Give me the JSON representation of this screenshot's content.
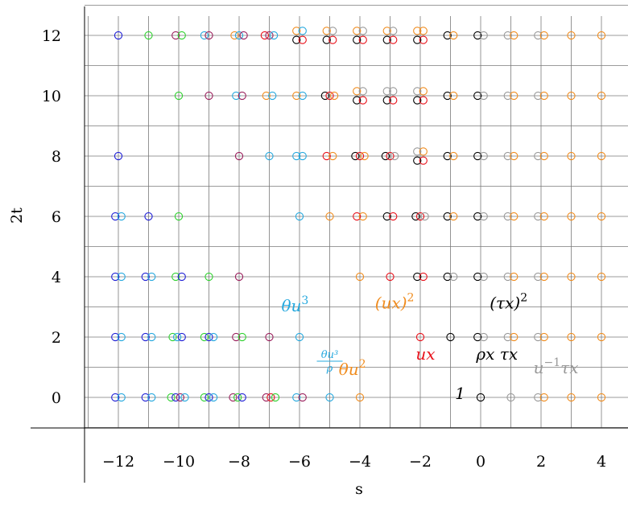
{
  "chart_data": {
    "type": "scatter",
    "xlabel": "s",
    "ylabel": "2t",
    "xlim": [
      -13,
      5
    ],
    "ylim": [
      -1,
      13
    ],
    "grid": true,
    "x_ticks": [
      {
        "v": -12,
        "label": "−12"
      },
      {
        "v": -10,
        "label": "−10"
      },
      {
        "v": -8,
        "label": "−8"
      },
      {
        "v": -6,
        "label": "−6"
      },
      {
        "v": -4,
        "label": "−4"
      },
      {
        "v": -2,
        "label": "−2"
      },
      {
        "v": 0,
        "label": "0"
      },
      {
        "v": 2,
        "label": "2"
      },
      {
        "v": 4,
        "label": "4"
      }
    ],
    "y_ticks": [
      {
        "v": 0,
        "label": "0"
      },
      {
        "v": 2,
        "label": "2"
      },
      {
        "v": 4,
        "label": "4"
      },
      {
        "v": 6,
        "label": "6"
      },
      {
        "v": 8,
        "label": "8"
      },
      {
        "v": 10,
        "label": "10"
      },
      {
        "v": 12,
        "label": "12"
      }
    ],
    "colors": {
      "blue": "#1f1fd6",
      "green": "#2fd12f",
      "purple": "#9a1f5c",
      "red": "#e8101a",
      "cyan": "#25a8de",
      "orange": "#f08c1e",
      "black": "#000000",
      "gray": "#999999"
    },
    "points": [
      {
        "x": -12.1,
        "y": 0,
        "c": "blue"
      },
      {
        "x": -11.9,
        "y": 0,
        "c": "cyan"
      },
      {
        "x": -11.1,
        "y": 0,
        "c": "blue"
      },
      {
        "x": -10.9,
        "y": 0,
        "c": "cyan"
      },
      {
        "x": -10.25,
        "y": 0,
        "c": "green"
      },
      {
        "x": -10.1,
        "y": 0,
        "c": "blue"
      },
      {
        "x": -9.95,
        "y": 0,
        "c": "purple"
      },
      {
        "x": -9.8,
        "y": 0,
        "c": "cyan"
      },
      {
        "x": -9.15,
        "y": 0,
        "c": "green"
      },
      {
        "x": -9.0,
        "y": 0,
        "c": "blue"
      },
      {
        "x": -8.85,
        "y": 0,
        "c": "cyan"
      },
      {
        "x": -8.2,
        "y": 0,
        "c": "purple"
      },
      {
        "x": -8.05,
        "y": 0,
        "c": "green"
      },
      {
        "x": -7.9,
        "y": 0,
        "c": "blue"
      },
      {
        "x": -7.1,
        "y": 0,
        "c": "purple"
      },
      {
        "x": -6.95,
        "y": 0,
        "c": "red"
      },
      {
        "x": -6.8,
        "y": 0,
        "c": "green"
      },
      {
        "x": -6.1,
        "y": 0,
        "c": "cyan"
      },
      {
        "x": -5.9,
        "y": 0,
        "c": "purple"
      },
      {
        "x": -5,
        "y": 0,
        "c": "cyan"
      },
      {
        "x": -4,
        "y": 0,
        "c": "orange"
      },
      {
        "x": 0,
        "y": 0,
        "c": "black"
      },
      {
        "x": 1,
        "y": 0,
        "c": "gray"
      },
      {
        "x": 1.9,
        "y": 0,
        "c": "gray"
      },
      {
        "x": 2.1,
        "y": 0,
        "c": "orange"
      },
      {
        "x": 3,
        "y": 0,
        "c": "orange"
      },
      {
        "x": 4,
        "y": 0,
        "c": "orange"
      },
      {
        "x": -12.1,
        "y": 2,
        "c": "blue"
      },
      {
        "x": -11.9,
        "y": 2,
        "c": "cyan"
      },
      {
        "x": -11.1,
        "y": 2,
        "c": "blue"
      },
      {
        "x": -10.9,
        "y": 2,
        "c": "cyan"
      },
      {
        "x": -10.2,
        "y": 2,
        "c": "green"
      },
      {
        "x": -10.05,
        "y": 2,
        "c": "cyan"
      },
      {
        "x": -9.9,
        "y": 2,
        "c": "blue"
      },
      {
        "x": -9.15,
        "y": 2,
        "c": "green"
      },
      {
        "x": -9.0,
        "y": 2,
        "c": "blue"
      },
      {
        "x": -8.85,
        "y": 2,
        "c": "cyan"
      },
      {
        "x": -8.1,
        "y": 2,
        "c": "purple"
      },
      {
        "x": -7.9,
        "y": 2,
        "c": "green"
      },
      {
        "x": -7,
        "y": 2,
        "c": "purple"
      },
      {
        "x": -6,
        "y": 2,
        "c": "cyan"
      },
      {
        "x": -2,
        "y": 2,
        "c": "red"
      },
      {
        "x": -1,
        "y": 2,
        "c": "black"
      },
      {
        "x": -0.1,
        "y": 2,
        "c": "black"
      },
      {
        "x": 0.1,
        "y": 2,
        "c": "gray"
      },
      {
        "x": 0.9,
        "y": 2,
        "c": "gray"
      },
      {
        "x": 1.1,
        "y": 2,
        "c": "orange"
      },
      {
        "x": 1.9,
        "y": 2,
        "c": "gray"
      },
      {
        "x": 2.1,
        "y": 2,
        "c": "orange"
      },
      {
        "x": 3,
        "y": 2,
        "c": "orange"
      },
      {
        "x": 4,
        "y": 2,
        "c": "orange"
      },
      {
        "x": -12.1,
        "y": 4,
        "c": "blue"
      },
      {
        "x": -11.9,
        "y": 4,
        "c": "cyan"
      },
      {
        "x": -11.1,
        "y": 4,
        "c": "blue"
      },
      {
        "x": -10.9,
        "y": 4,
        "c": "cyan"
      },
      {
        "x": -10.1,
        "y": 4,
        "c": "green"
      },
      {
        "x": -9.9,
        "y": 4,
        "c": "blue"
      },
      {
        "x": -9,
        "y": 4,
        "c": "green"
      },
      {
        "x": -8,
        "y": 4,
        "c": "purple"
      },
      {
        "x": -4,
        "y": 4,
        "c": "orange"
      },
      {
        "x": -3,
        "y": 4,
        "c": "red"
      },
      {
        "x": -2.1,
        "y": 4,
        "c": "black"
      },
      {
        "x": -1.9,
        "y": 4,
        "c": "red"
      },
      {
        "x": -1.1,
        "y": 4,
        "c": "black"
      },
      {
        "x": -0.9,
        "y": 4,
        "c": "gray"
      },
      {
        "x": -0.1,
        "y": 4,
        "c": "black"
      },
      {
        "x": 0.1,
        "y": 4,
        "c": "gray"
      },
      {
        "x": 0.9,
        "y": 4,
        "c": "gray"
      },
      {
        "x": 1.1,
        "y": 4,
        "c": "orange"
      },
      {
        "x": 1.9,
        "y": 4,
        "c": "gray"
      },
      {
        "x": 2.1,
        "y": 4,
        "c": "orange"
      },
      {
        "x": 3,
        "y": 4,
        "c": "orange"
      },
      {
        "x": 4,
        "y": 4,
        "c": "orange"
      },
      {
        "x": -12.1,
        "y": 6,
        "c": "blue"
      },
      {
        "x": -11.9,
        "y": 6,
        "c": "cyan"
      },
      {
        "x": -11,
        "y": 6,
        "c": "blue"
      },
      {
        "x": -10,
        "y": 6,
        "c": "green"
      },
      {
        "x": -6,
        "y": 6,
        "c": "cyan"
      },
      {
        "x": -5,
        "y": 6,
        "c": "orange"
      },
      {
        "x": -4.1,
        "y": 6,
        "c": "red"
      },
      {
        "x": -3.9,
        "y": 6,
        "c": "orange"
      },
      {
        "x": -3.1,
        "y": 6,
        "c": "black"
      },
      {
        "x": -2.9,
        "y": 6,
        "c": "red"
      },
      {
        "x": -2.15,
        "y": 6,
        "c": "black"
      },
      {
        "x": -2.0,
        "y": 6,
        "c": "red"
      },
      {
        "x": -1.85,
        "y": 6,
        "c": "gray"
      },
      {
        "x": -1.1,
        "y": 6,
        "c": "black"
      },
      {
        "x": -0.9,
        "y": 6,
        "c": "orange"
      },
      {
        "x": -0.1,
        "y": 6,
        "c": "black"
      },
      {
        "x": 0.1,
        "y": 6,
        "c": "gray"
      },
      {
        "x": 0.9,
        "y": 6,
        "c": "gray"
      },
      {
        "x": 1.1,
        "y": 6,
        "c": "orange"
      },
      {
        "x": 1.9,
        "y": 6,
        "c": "gray"
      },
      {
        "x": 2.1,
        "y": 6,
        "c": "orange"
      },
      {
        "x": 3,
        "y": 6,
        "c": "orange"
      },
      {
        "x": 4,
        "y": 6,
        "c": "orange"
      },
      {
        "x": -12,
        "y": 8,
        "c": "blue"
      },
      {
        "x": -8,
        "y": 8,
        "c": "purple"
      },
      {
        "x": -7,
        "y": 8,
        "c": "cyan"
      },
      {
        "x": -6.1,
        "y": 8,
        "c": "cyan"
      },
      {
        "x": -5.9,
        "y": 8,
        "c": "cyan"
      },
      {
        "x": -5.1,
        "y": 8,
        "c": "red"
      },
      {
        "x": -4.9,
        "y": 8,
        "c": "orange"
      },
      {
        "x": -4.15,
        "y": 8,
        "c": "black"
      },
      {
        "x": -4.0,
        "y": 8,
        "c": "red"
      },
      {
        "x": -3.85,
        "y": 8,
        "c": "orange"
      },
      {
        "x": -3.15,
        "y": 8,
        "c": "black"
      },
      {
        "x": -3.0,
        "y": 8,
        "c": "red"
      },
      {
        "x": -2.85,
        "y": 8,
        "c": "gray"
      },
      {
        "x": -2.1,
        "y": 8.15,
        "c": "gray"
      },
      {
        "x": -1.9,
        "y": 8.15,
        "c": "orange"
      },
      {
        "x": -2.1,
        "y": 7.85,
        "c": "black"
      },
      {
        "x": -1.9,
        "y": 7.85,
        "c": "red"
      },
      {
        "x": -1.1,
        "y": 8,
        "c": "black"
      },
      {
        "x": -0.9,
        "y": 8,
        "c": "orange"
      },
      {
        "x": -0.1,
        "y": 8,
        "c": "black"
      },
      {
        "x": 0.1,
        "y": 8,
        "c": "gray"
      },
      {
        "x": 0.9,
        "y": 8,
        "c": "gray"
      },
      {
        "x": 1.1,
        "y": 8,
        "c": "orange"
      },
      {
        "x": 1.9,
        "y": 8,
        "c": "gray"
      },
      {
        "x": 2.1,
        "y": 8,
        "c": "orange"
      },
      {
        "x": 3,
        "y": 8,
        "c": "orange"
      },
      {
        "x": 4,
        "y": 8,
        "c": "orange"
      },
      {
        "x": -10,
        "y": 10,
        "c": "green"
      },
      {
        "x": -9,
        "y": 10,
        "c": "purple"
      },
      {
        "x": -8.1,
        "y": 10,
        "c": "cyan"
      },
      {
        "x": -7.9,
        "y": 10,
        "c": "purple"
      },
      {
        "x": -7.1,
        "y": 10,
        "c": "orange"
      },
      {
        "x": -6.9,
        "y": 10,
        "c": "cyan"
      },
      {
        "x": -6.1,
        "y": 10,
        "c": "orange"
      },
      {
        "x": -5.9,
        "y": 10,
        "c": "cyan"
      },
      {
        "x": -5.15,
        "y": 10,
        "c": "black"
      },
      {
        "x": -5.0,
        "y": 10,
        "c": "red"
      },
      {
        "x": -4.85,
        "y": 10,
        "c": "orange"
      },
      {
        "x": -4.1,
        "y": 10.15,
        "c": "orange"
      },
      {
        "x": -3.9,
        "y": 10.15,
        "c": "gray"
      },
      {
        "x": -4.1,
        "y": 9.85,
        "c": "black"
      },
      {
        "x": -3.9,
        "y": 9.85,
        "c": "red"
      },
      {
        "x": -3.1,
        "y": 10.15,
        "c": "gray"
      },
      {
        "x": -2.9,
        "y": 10.15,
        "c": "gray"
      },
      {
        "x": -3.1,
        "y": 9.85,
        "c": "black"
      },
      {
        "x": -2.9,
        "y": 9.85,
        "c": "red"
      },
      {
        "x": -2.1,
        "y": 10.15,
        "c": "gray"
      },
      {
        "x": -1.9,
        "y": 10.15,
        "c": "orange"
      },
      {
        "x": -2.1,
        "y": 9.85,
        "c": "black"
      },
      {
        "x": -1.9,
        "y": 9.85,
        "c": "red"
      },
      {
        "x": -1.1,
        "y": 10,
        "c": "black"
      },
      {
        "x": -0.9,
        "y": 10,
        "c": "orange"
      },
      {
        "x": -0.1,
        "y": 10,
        "c": "black"
      },
      {
        "x": 0.1,
        "y": 10,
        "c": "gray"
      },
      {
        "x": 0.9,
        "y": 10,
        "c": "gray"
      },
      {
        "x": 1.1,
        "y": 10,
        "c": "orange"
      },
      {
        "x": 1.9,
        "y": 10,
        "c": "gray"
      },
      {
        "x": 2.1,
        "y": 10,
        "c": "orange"
      },
      {
        "x": 3,
        "y": 10,
        "c": "orange"
      },
      {
        "x": 4,
        "y": 10,
        "c": "orange"
      },
      {
        "x": -12,
        "y": 12,
        "c": "blue"
      },
      {
        "x": -11,
        "y": 12,
        "c": "green"
      },
      {
        "x": -10.1,
        "y": 12,
        "c": "purple"
      },
      {
        "x": -9.9,
        "y": 12,
        "c": "green"
      },
      {
        "x": -9.15,
        "y": 12,
        "c": "cyan"
      },
      {
        "x": -9.0,
        "y": 12,
        "c": "purple"
      },
      {
        "x": -8.15,
        "y": 12,
        "c": "orange"
      },
      {
        "x": -8.0,
        "y": 12,
        "c": "cyan"
      },
      {
        "x": -7.85,
        "y": 12,
        "c": "purple"
      },
      {
        "x": -7.15,
        "y": 12,
        "c": "red"
      },
      {
        "x": -7.0,
        "y": 12,
        "c": "purple"
      },
      {
        "x": -6.85,
        "y": 12,
        "c": "cyan"
      },
      {
        "x": -6.1,
        "y": 12.15,
        "c": "orange"
      },
      {
        "x": -5.9,
        "y": 12.15,
        "c": "cyan"
      },
      {
        "x": -6.1,
        "y": 11.85,
        "c": "black"
      },
      {
        "x": -5.9,
        "y": 11.85,
        "c": "red"
      },
      {
        "x": -5.1,
        "y": 12.15,
        "c": "orange"
      },
      {
        "x": -4.9,
        "y": 12.15,
        "c": "gray"
      },
      {
        "x": -5.1,
        "y": 11.85,
        "c": "black"
      },
      {
        "x": -4.9,
        "y": 11.85,
        "c": "red"
      },
      {
        "x": -4.1,
        "y": 12.15,
        "c": "orange"
      },
      {
        "x": -3.9,
        "y": 12.15,
        "c": "gray"
      },
      {
        "x": -4.1,
        "y": 11.85,
        "c": "black"
      },
      {
        "x": -3.9,
        "y": 11.85,
        "c": "red"
      },
      {
        "x": -3.1,
        "y": 12.15,
        "c": "orange"
      },
      {
        "x": -2.9,
        "y": 12.15,
        "c": "gray"
      },
      {
        "x": -3.1,
        "y": 11.85,
        "c": "black"
      },
      {
        "x": -2.9,
        "y": 11.85,
        "c": "red"
      },
      {
        "x": -2.1,
        "y": 12.15,
        "c": "orange"
      },
      {
        "x": -1.9,
        "y": 12.15,
        "c": "orange"
      },
      {
        "x": -2.1,
        "y": 11.85,
        "c": "black"
      },
      {
        "x": -1.9,
        "y": 11.85,
        "c": "red"
      },
      {
        "x": -1.1,
        "y": 12,
        "c": "black"
      },
      {
        "x": -0.9,
        "y": 12,
        "c": "orange"
      },
      {
        "x": -0.1,
        "y": 12,
        "c": "black"
      },
      {
        "x": 0.1,
        "y": 12,
        "c": "gray"
      },
      {
        "x": 0.9,
        "y": 12,
        "c": "gray"
      },
      {
        "x": 1.1,
        "y": 12,
        "c": "orange"
      },
      {
        "x": 1.9,
        "y": 12,
        "c": "gray"
      },
      {
        "x": 2.1,
        "y": 12,
        "c": "orange"
      },
      {
        "x": 3,
        "y": 12,
        "c": "orange"
      },
      {
        "x": 4,
        "y": 12,
        "c": "orange"
      }
    ],
    "annotations": [
      {
        "x": -6.6,
        "y": 2.85,
        "c": "cyan",
        "base": "θu",
        "sup": "3"
      },
      {
        "x": -3.5,
        "y": 2.95,
        "c": "orange",
        "base": "(ux)",
        "sup": "2"
      },
      {
        "x": 0.3,
        "y": 2.95,
        "c": "black",
        "base": "(τx)",
        "sup": "2"
      },
      {
        "x": -5.0,
        "y": 1.2,
        "c": "cyan",
        "frac_num": "θu³",
        "frac_den": "ρ"
      },
      {
        "x": -4.7,
        "y": 0.75,
        "c": "orange",
        "base": "θu",
        "sup": "2"
      },
      {
        "x": -2.15,
        "y": 1.25,
        "c": "red",
        "base": "ux"
      },
      {
        "x": -0.15,
        "y": 1.25,
        "c": "black",
        "base": "ρx τx"
      },
      {
        "x": 1.75,
        "y": 0.8,
        "c": "gray",
        "base": "u",
        "sup": "−1",
        "tail": "τx"
      },
      {
        "x": -0.85,
        "y": -0.05,
        "c": "black",
        "base": "1",
        "upright": true
      }
    ]
  }
}
